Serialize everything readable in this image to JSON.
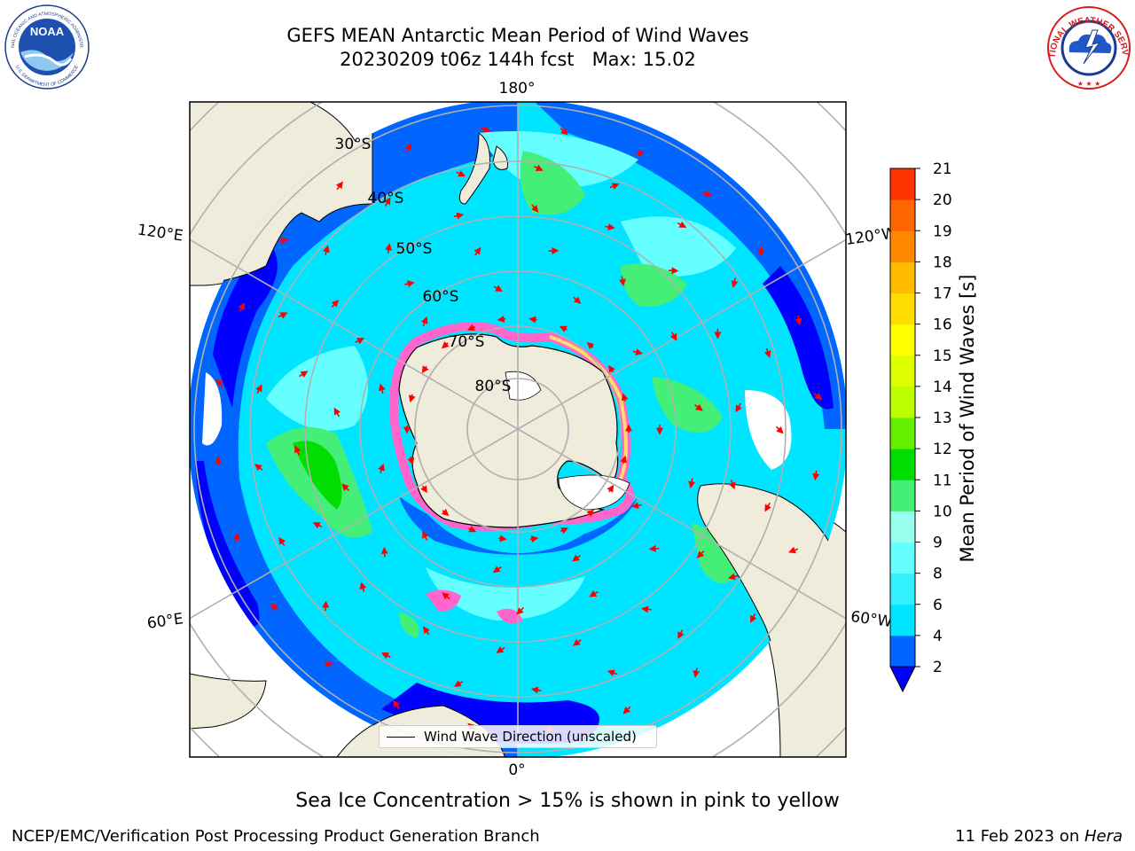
{
  "title": {
    "line1": "GEFS MEAN Antarctic Mean Period of Wind Waves",
    "line2": "20230209 t06z 144h fcst   Max: 15.02"
  },
  "logos": {
    "left": {
      "name": "noaa-logo",
      "text_top": "NATIONAL OCEANIC AND ATMOSPHERIC ADMINISTRATION",
      "text_bottom": "U.S. DEPARTMENT OF COMMERCE",
      "abbr": "NOAA"
    },
    "right": {
      "name": "nws-logo",
      "text": "NATIONAL WEATHER SERVICE"
    }
  },
  "map": {
    "projection": "south-polar-stereographic",
    "longitude_labels": {
      "top": "180°",
      "bottom": "0°",
      "left_upper": "120°E",
      "left_lower": "60°E",
      "right_upper": "120°W",
      "right_lower": "60°W"
    },
    "latitude_labels": [
      "30°S",
      "40°S",
      "50°S",
      "60°S",
      "70°S",
      "80°S"
    ],
    "legend_label": "Wind Wave Direction (unscaled)",
    "colors": {
      "land": "#efecdc",
      "ocean_deep": "#0000ff",
      "grid": "#b0b0b0",
      "arrow": "#ff0000"
    }
  },
  "colorbar": {
    "label": "Mean Period of Wind Waves [s]",
    "ticks": [
      "2",
      "4",
      "6",
      "8",
      "9",
      "10",
      "11",
      "12",
      "13",
      "14",
      "15",
      "16",
      "17",
      "18",
      "19",
      "20",
      "21"
    ],
    "colors": [
      "#0066ff",
      "#00e5ff",
      "#33f0ff",
      "#66ffff",
      "#99ffee",
      "#44ee77",
      "#00dd00",
      "#66ee00",
      "#bbff00",
      "#ddff00",
      "#ffff00",
      "#ffdd00",
      "#ffbb00",
      "#ff8800",
      "#ff6600",
      "#ff3300"
    ],
    "under_color": "#0000ff",
    "extend": "min"
  },
  "subtitle": "Sea Ice Concentration > 15% is shown in pink to yellow",
  "footer": {
    "left": "NCEP/EMC/Verification Post Processing Product Generation Branch",
    "right_prefix": "11 Feb 2023 on ",
    "right_host": "Hera"
  }
}
